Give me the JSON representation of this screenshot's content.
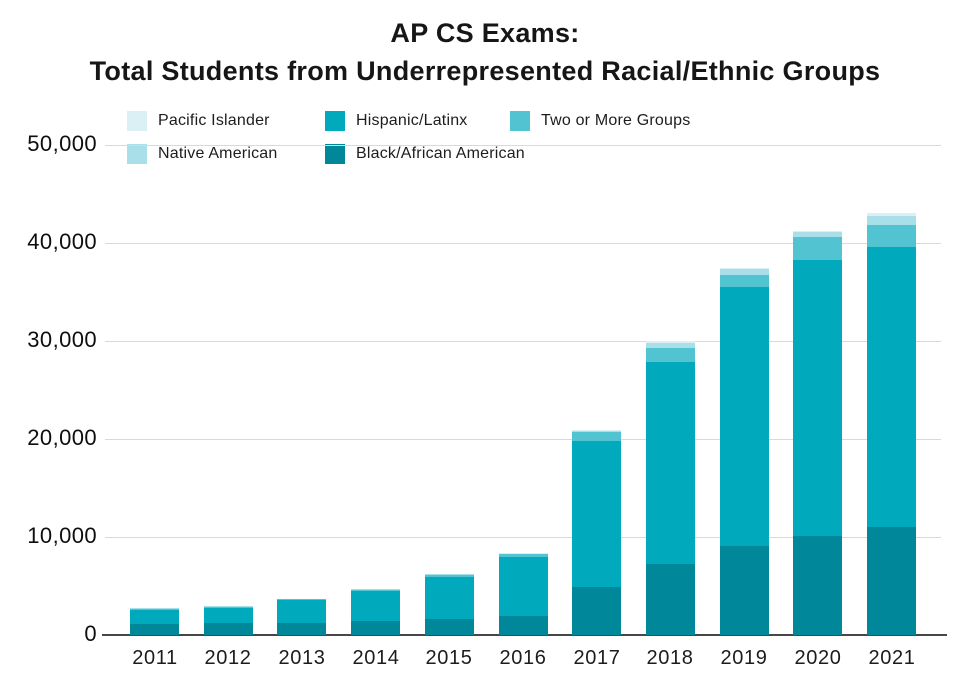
{
  "title": {
    "line1": "AP CS Exams:",
    "line2": "Total Students from Underrepresented Racial/Ethnic Groups"
  },
  "legend": {
    "rows": [
      [
        {
          "label": "Pacific Islander",
          "color": "#daf0f4"
        },
        {
          "label": "Hispanic/Latinx",
          "color": "#00a9bb"
        },
        {
          "label": "Two or More Groups",
          "color": "#52c4d1"
        }
      ],
      [
        {
          "label": "Native American",
          "color": "#a8dfe8"
        },
        {
          "label": "Black/African American",
          "color": "#00879a"
        }
      ]
    ]
  },
  "chart_data": {
    "type": "bar",
    "stacked": true,
    "title": "AP CS Exams: Total Students from Underrepresented Racial/Ethnic Groups",
    "xlabel": "",
    "ylabel": "",
    "categories": [
      "2011",
      "2012",
      "2013",
      "2014",
      "2015",
      "2016",
      "2017",
      "2018",
      "2019",
      "2020",
      "2021"
    ],
    "series": [
      {
        "name": "Black/African American",
        "color": "#00879a",
        "values": [
          1100,
          1200,
          1250,
          1400,
          1650,
          1950,
          4900,
          7200,
          9100,
          10100,
          11000
        ]
      },
      {
        "name": "Hispanic/Latinx",
        "color": "#00a9bb",
        "values": [
          1500,
          1600,
          2300,
          3050,
          4300,
          6050,
          14900,
          20700,
          26400,
          28200,
          28600
        ]
      },
      {
        "name": "Two or More Groups",
        "color": "#52c4d1",
        "values": [
          90,
          100,
          130,
          160,
          200,
          250,
          950,
          1350,
          1250,
          2350,
          2200
        ]
      },
      {
        "name": "Native American",
        "color": "#a8dfe8",
        "values": [
          25,
          25,
          30,
          40,
          60,
          70,
          120,
          600,
          550,
          450,
          1000
        ]
      },
      {
        "name": "Pacific Islander",
        "color": "#daf0f4",
        "values": [
          10,
          10,
          15,
          15,
          20,
          25,
          30,
          150,
          130,
          130,
          300
        ]
      }
    ],
    "approx_totals": [
      2725,
      2935,
      3725,
      4665,
      6230,
      8345,
      20900,
      30000,
      37430,
      41230,
      43100
    ],
    "ylim": [
      0,
      50000
    ],
    "ytick_interval": 10000,
    "ytick_labels": [
      "0",
      "10,000",
      "20,000",
      "30,000",
      "40,000",
      "50,000"
    ],
    "grid": "horizontal",
    "legend_position": "top-left"
  },
  "colors": {
    "gridline": "#d9d9d9",
    "axis_line": "#474747",
    "text": "#1a1a1a"
  }
}
